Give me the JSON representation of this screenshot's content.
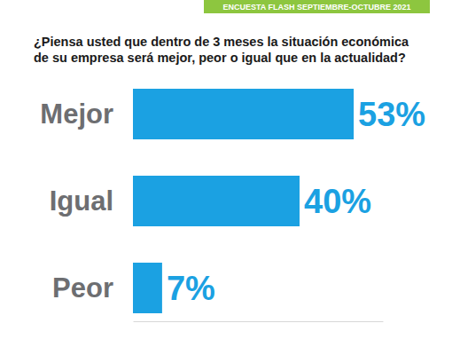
{
  "chart_data": {
    "type": "bar",
    "orientation": "horizontal",
    "subtitle": "ENCUESTA FLASH SEPTIEMBRE-OCTUBRE 2021",
    "title": "¿Piensa usted que dentro de 3 meses la situación económica de su empresa será mejor, peor o igual que en la actualidad?",
    "categories": [
      "Mejor",
      "Igual",
      "Peor"
    ],
    "values": [
      53,
      40,
      7
    ],
    "value_labels": [
      "53%",
      "40%",
      "7%"
    ],
    "color": "#1ba1e2",
    "xlim": [
      0,
      60
    ],
    "xticks": [],
    "data_labels": true,
    "tick_labels": "y",
    "grid": false
  }
}
